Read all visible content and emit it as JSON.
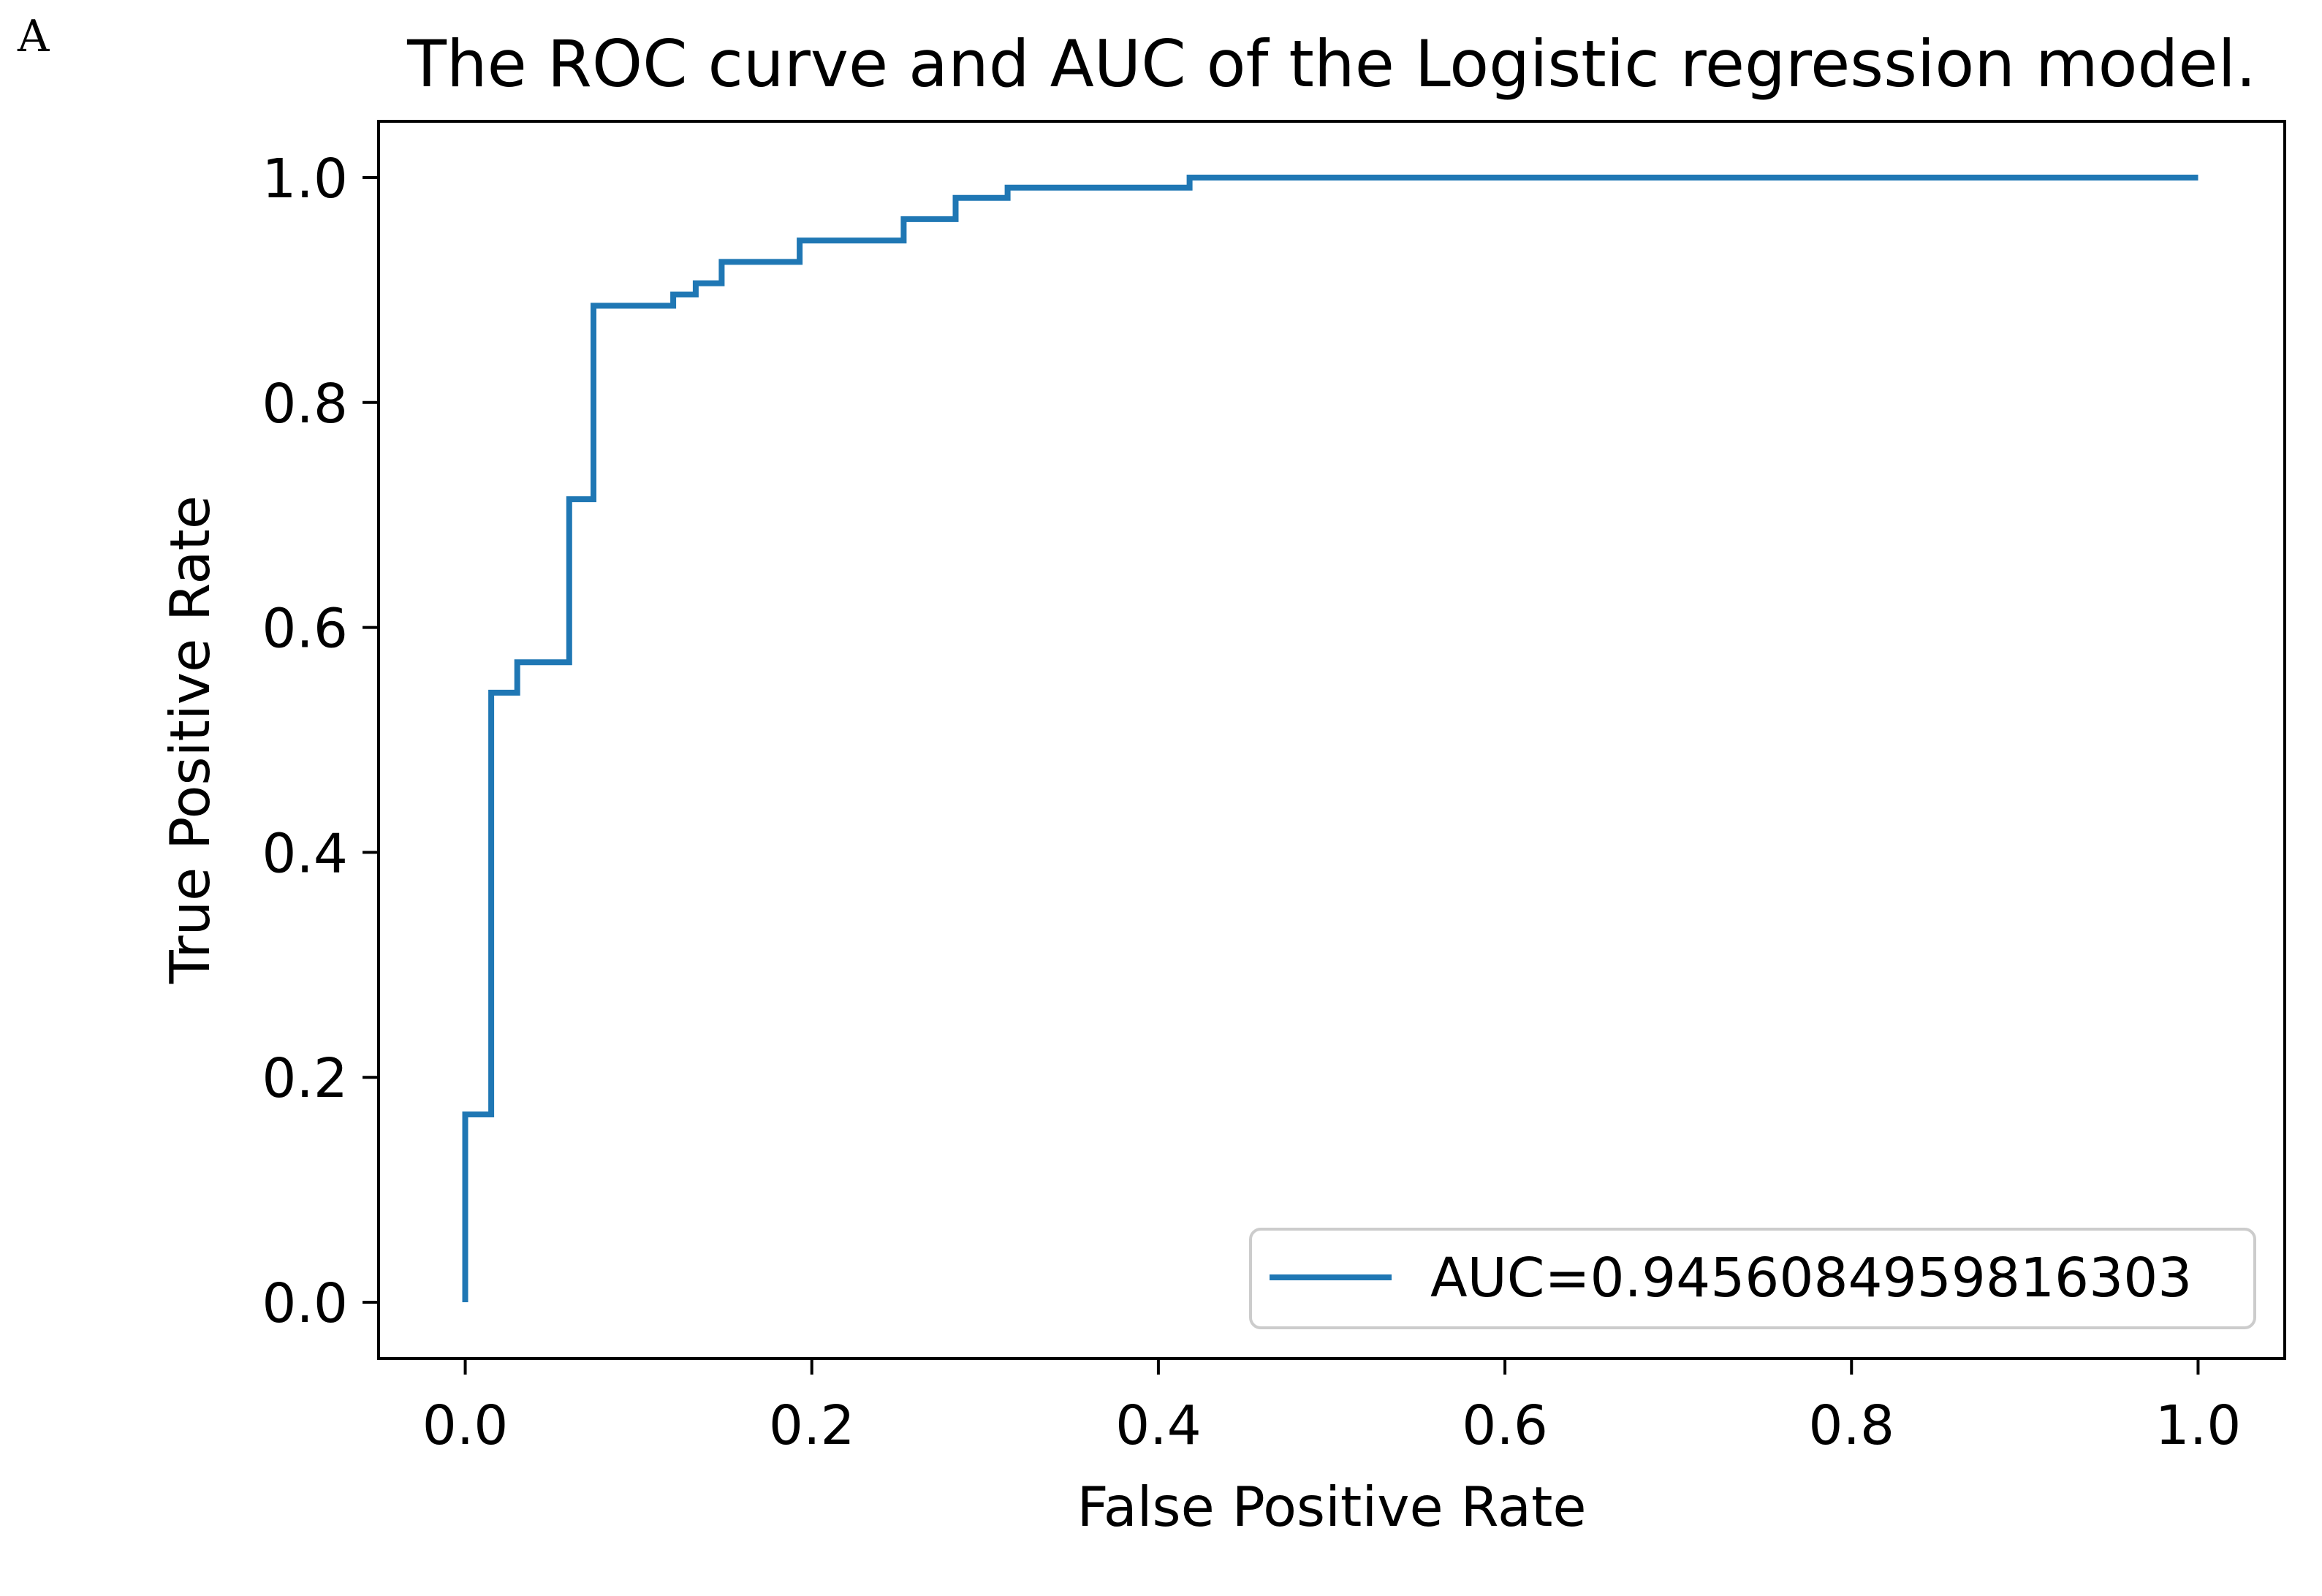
{
  "panel_label": "A",
  "chart_data": {
    "type": "line",
    "title": "The ROC curve and AUC of the Logistic regression model.",
    "xlabel": "False Positive Rate",
    "ylabel": "True Positive Rate",
    "xlim": [
      -0.05,
      1.05
    ],
    "ylim": [
      -0.05,
      1.05
    ],
    "xticks": [
      0.0,
      0.2,
      0.4,
      0.6,
      0.8,
      1.0
    ],
    "yticks": [
      0.0,
      0.2,
      0.4,
      0.6,
      0.8,
      1.0
    ],
    "xtick_labels": [
      "0.0",
      "0.2",
      "0.4",
      "0.6",
      "0.8",
      "1.0"
    ],
    "ytick_labels": [
      "0.0",
      "0.2",
      "0.4",
      "0.6",
      "0.8",
      "1.0"
    ],
    "grid": false,
    "legend_position": "lower-right",
    "series": [
      {
        "name": "AUC=0.9456084959816303",
        "color": "#1f77b4",
        "x": [
          0.0,
          0.0,
          0.015,
          0.015,
          0.03,
          0.03,
          0.06,
          0.06,
          0.074,
          0.074,
          0.12,
          0.12,
          0.133,
          0.133,
          0.148,
          0.148,
          0.193,
          0.193,
          0.253,
          0.253,
          0.283,
          0.283,
          0.313,
          0.313,
          0.418,
          0.418,
          1.0
        ],
        "y": [
          0.0,
          0.167,
          0.167,
          0.542,
          0.542,
          0.569,
          0.569,
          0.714,
          0.714,
          0.886,
          0.886,
          0.896,
          0.896,
          0.906,
          0.906,
          0.925,
          0.925,
          0.944,
          0.944,
          0.963,
          0.963,
          0.982,
          0.982,
          0.991,
          0.991,
          1.0,
          1.0
        ]
      }
    ]
  }
}
